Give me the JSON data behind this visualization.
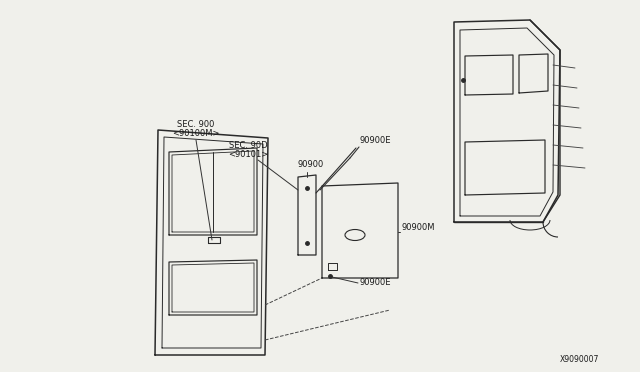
{
  "bg_color": "#f0f0eb",
  "line_color": "#2a2a2a",
  "text_color": "#1a1a1a",
  "diagram_id": "X9090007",
  "label_sec900": "SEC. 900",
  "label_sec900b": "<90100M>",
  "label_sec90d": "SEC. 90D",
  "label_sec90db": "<90101>",
  "label_90900": "90900",
  "label_90900E_top": "90900E",
  "label_90900M": "90900M",
  "label_90900E_bot": "90900E"
}
